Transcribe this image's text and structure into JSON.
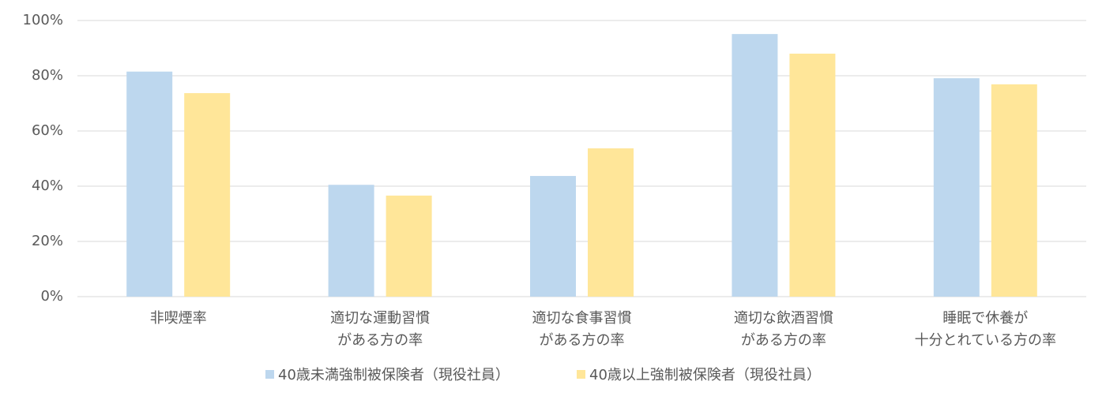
{
  "chart_data": {
    "type": "bar",
    "categories": [
      [
        "非喫煙率"
      ],
      [
        "適切な運動習慣",
        "がある方の率"
      ],
      [
        "適切な食事習慣",
        "がある方の率"
      ],
      [
        "適切な飲酒習慣",
        "がある方の率"
      ],
      [
        "睡眠で休養が",
        "十分とれている方の率"
      ]
    ],
    "series": [
      {
        "name": "40歳未満強制被保険者（現役社員）",
        "color": "#bdd7ee",
        "values": [
          81.5,
          40.5,
          43.7,
          95.1,
          79.1
        ]
      },
      {
        "name": "40歳以上強制被保険者（現役社員）",
        "color": "#ffe699",
        "values": [
          73.7,
          36.6,
          53.7,
          88,
          76.9
        ]
      }
    ],
    "ylim": [
      0,
      100
    ],
    "yticks": [
      {
        "value": 0,
        "label": "0%"
      },
      {
        "value": 20,
        "label": "20%"
      },
      {
        "value": 40,
        "label": "40%"
      },
      {
        "value": 60,
        "label": "60%"
      },
      {
        "value": 80,
        "label": "80%"
      },
      {
        "value": 100,
        "label": "100%"
      }
    ],
    "grid": true,
    "legend": "bottom"
  }
}
